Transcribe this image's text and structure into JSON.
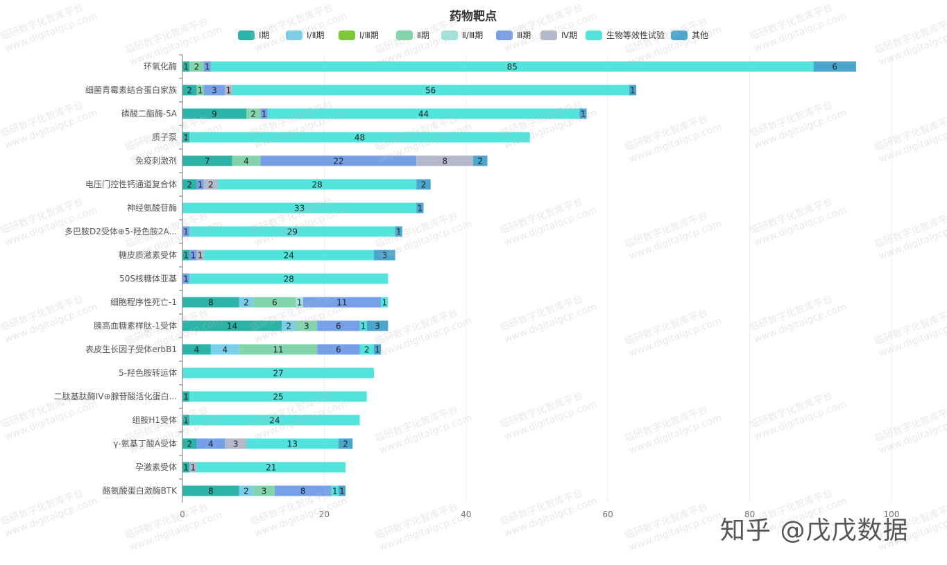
{
  "watermark": {
    "line1": "临研数字化智库平台",
    "line2": "www.digitalgcp.com"
  },
  "brand": "知乎 @戊戊数据",
  "chart_data": {
    "type": "bar",
    "orientation": "horizontal",
    "stacked": true,
    "title": "药物靶点",
    "xlabel": "",
    "ylabel": "",
    "xlim": [
      0,
      100
    ],
    "xticks": [
      0,
      20,
      40,
      60,
      80,
      100
    ],
    "legend_position": "top-center",
    "categories": [
      "环氧化酶",
      "细菌青霉素结合蛋白家族",
      "磷酸二酯酶-5A",
      "质子泵",
      "免疫刺激剂",
      "电压门控性钙通道复合体",
      "神经氨酸苷酶",
      "多巴胺D2受体⊕5-羟色胺2A...",
      "糖皮质激素受体",
      "50S核糖体亚基",
      "细胞程序性死亡-1",
      "胰高血糖素样肽-1受体",
      "表皮生长因子受体erbB1",
      "5-羟色胺转运体",
      "二肽基肽酶IV⊕腺苷酸活化蛋白...",
      "组胺H1受体",
      "γ-氨基丁酸A受体",
      "孕激素受体",
      "酪氨酸蛋白激酶BTK"
    ],
    "series": [
      {
        "name": "Ⅰ期",
        "color": "#2ab3a6",
        "values": [
          1,
          2,
          9,
          1,
          7,
          2,
          0,
          0,
          1,
          0,
          8,
          14,
          4,
          0,
          1,
          1,
          2,
          1,
          8
        ]
      },
      {
        "name": "Ⅰ/Ⅱ期",
        "color": "#79cfe9",
        "values": [
          0,
          0,
          0,
          0,
          0,
          0,
          0,
          0,
          0,
          0,
          2,
          2,
          4,
          0,
          0,
          0,
          0,
          0,
          2
        ]
      },
      {
        "name": "Ⅰ/Ⅲ期",
        "color": "#7cc73a",
        "values": [
          0,
          0,
          0,
          0,
          0,
          0,
          0,
          0,
          0,
          0,
          0,
          0,
          0,
          0,
          0,
          0,
          0,
          0,
          0
        ]
      },
      {
        "name": "Ⅱ期",
        "color": "#82d4ab",
        "values": [
          2,
          1,
          2,
          0,
          4,
          0,
          0,
          0,
          0,
          0,
          6,
          3,
          11,
          0,
          0,
          0,
          0,
          0,
          3
        ]
      },
      {
        "name": "Ⅱ/Ⅲ期",
        "color": "#a3e3dc",
        "values": [
          0,
          0,
          0,
          0,
          0,
          0,
          0,
          0,
          0,
          0,
          1,
          0,
          0,
          0,
          0,
          0,
          0,
          0,
          0
        ]
      },
      {
        "name": "Ⅲ期",
        "color": "#76a0e8",
        "values": [
          1,
          3,
          1,
          0,
          22,
          1,
          0,
          1,
          1,
          1,
          11,
          6,
          6,
          0,
          0,
          0,
          4,
          0,
          8
        ]
      },
      {
        "name": "Ⅳ期",
        "color": "#b3b9cb",
        "values": [
          0,
          1,
          0,
          0,
          8,
          2,
          0,
          0,
          1,
          0,
          0,
          0,
          0,
          0,
          0,
          0,
          3,
          1,
          0
        ]
      },
      {
        "name": "生物等效性试验",
        "color": "#52e3dc",
        "values": [
          85,
          56,
          44,
          48,
          0,
          28,
          33,
          29,
          24,
          28,
          1,
          1,
          2,
          27,
          25,
          24,
          13,
          21,
          1
        ]
      },
      {
        "name": "其他",
        "color": "#4ba6ce",
        "values": [
          6,
          1,
          1,
          0,
          2,
          2,
          1,
          1,
          3,
          0,
          0,
          3,
          1,
          0,
          0,
          0,
          2,
          0,
          1
        ]
      }
    ]
  }
}
